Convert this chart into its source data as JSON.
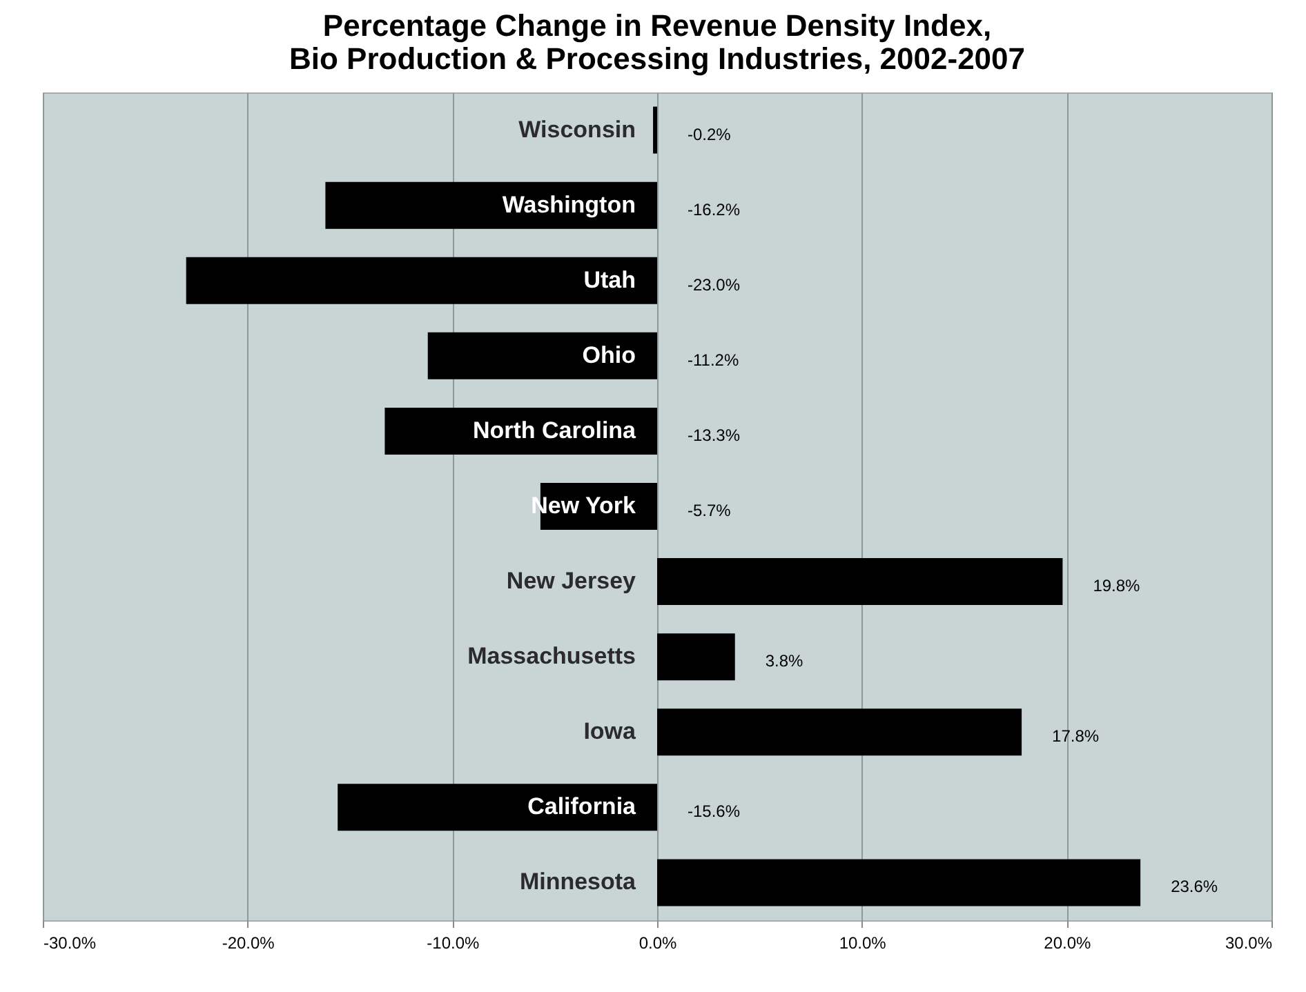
{
  "chart_data": {
    "type": "bar",
    "orientation": "horizontal",
    "title": "Percentage Change in Revenue Density Index,\nBio Production & Processing Industries, 2002-2007",
    "categories": [
      "Wisconsin",
      "Washington",
      "Utah",
      "Ohio",
      "North Carolina",
      "New York",
      "New Jersey",
      "Massachusetts",
      "Iowa",
      "California",
      "Minnesota"
    ],
    "values": [
      -0.2,
      -16.2,
      -23.0,
      -11.2,
      -13.3,
      -5.7,
      19.8,
      3.8,
      17.8,
      -15.6,
      23.6
    ],
    "value_labels": [
      "-0.2%",
      "-16.2%",
      "-23.0%",
      "-11.2%",
      "-13.3%",
      "-5.7%",
      "19.8%",
      "3.8%",
      "17.8%",
      "-15.6%",
      "23.6%"
    ],
    "color": "#000000",
    "xlim": [
      -30,
      30
    ],
    "xticks": [
      {
        "value": -30,
        "label": "-30.0%"
      },
      {
        "value": -20,
        "label": "-20.0%"
      },
      {
        "value": -10,
        "label": "-10.0%"
      },
      {
        "value": 0,
        "label": "0.0%"
      },
      {
        "value": 10,
        "label": "10.0%"
      },
      {
        "value": 20,
        "label": "20.0%"
      },
      {
        "value": 30,
        "label": "30.0%"
      }
    ],
    "grid": "x"
  }
}
